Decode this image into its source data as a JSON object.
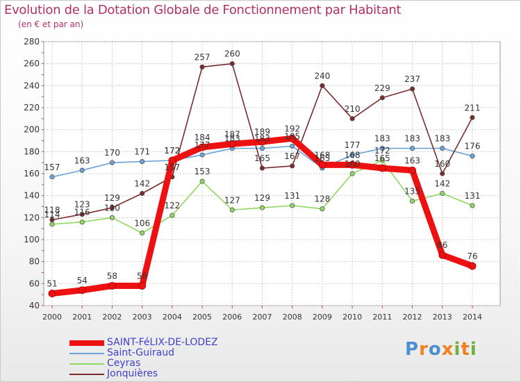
{
  "title": "Evolution de la Dotation Globale de Fonctionnement par Habitant",
  "subtitle": "(en € et par an)",
  "logo": "Proxiti",
  "colors": {
    "title": "#b0306a",
    "legend_text": "#4040c8"
  },
  "chart_data": {
    "type": "line",
    "title": "Evolution de la Dotation Globale de Fonctionnement par Habitant",
    "ylabel": "(en € et par an)",
    "x": [
      "2000",
      "2001",
      "2002",
      "2003",
      "2004",
      "2005",
      "2006",
      "2007",
      "2008",
      "2009",
      "2010",
      "2011",
      "2012",
      "2013",
      "2014"
    ],
    "ylim": [
      40,
      280
    ],
    "yticks": [
      40,
      60,
      80,
      100,
      120,
      140,
      160,
      180,
      200,
      220,
      240,
      260,
      280
    ],
    "grid": true,
    "legend_position": "bottom-left",
    "series": [
      {
        "name": "SAINT-FéLIX-DE-LODEZ",
        "color": "#ee1111",
        "highlight": true,
        "values": [
          51,
          54,
          58,
          58,
          172,
          184,
          187,
          189,
          192,
          168,
          168,
          165,
          163,
          86,
          76
        ]
      },
      {
        "name": "Saint-Guiraud",
        "color": "#6aa4d8",
        "values": [
          157,
          163,
          170,
          171,
          172,
          177,
          183,
          183,
          185,
          165,
          177,
          183,
          183,
          183,
          176
        ]
      },
      {
        "name": "Ceyras",
        "color": "#90d860",
        "values": [
          114,
          116,
          120,
          106,
          122,
          153,
          127,
          129,
          131,
          128,
          160,
          172,
          135,
          142,
          131
        ]
      },
      {
        "name": "Jonquières",
        "color": "#7a2a2a",
        "values": [
          118,
          123,
          129,
          142,
          157,
          257,
          260,
          165,
          167,
          240,
          210,
          229,
          237,
          160,
          211
        ]
      }
    ]
  }
}
